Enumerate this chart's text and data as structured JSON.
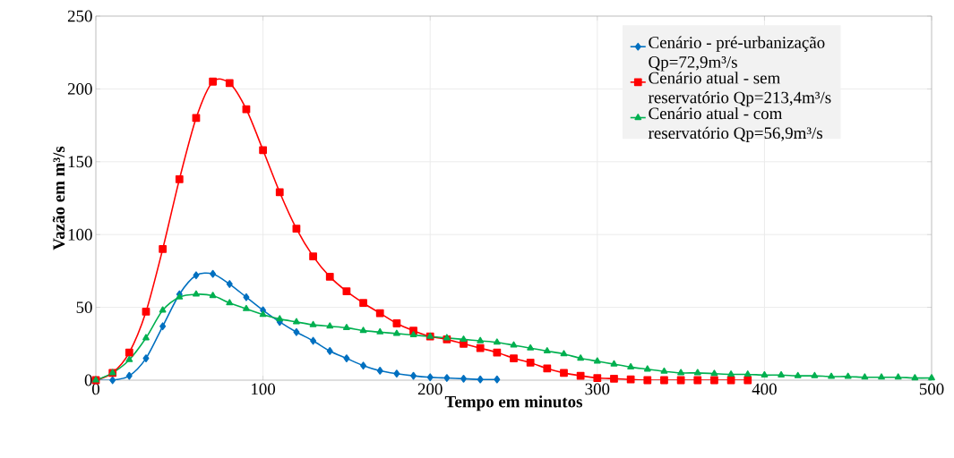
{
  "chart_data": {
    "type": "line",
    "xlabel": "Tempo em minutos",
    "ylabel": "Vazão em m³/s",
    "xlim": [
      0,
      500
    ],
    "xticks": [
      0,
      100,
      200,
      300,
      400,
      500
    ],
    "ylim": [
      0,
      250
    ],
    "yticks": [
      0,
      50,
      100,
      150,
      200,
      250
    ],
    "grid": true,
    "legend": "top right",
    "line_style": "solid",
    "series": [
      {
        "name": "Cenário - pré-urbanização Qp=72,9m³/s",
        "color": "#0070c0",
        "marker": "diamond",
        "x": [
          0,
          10,
          20,
          30,
          40,
          50,
          60,
          70,
          80,
          90,
          100,
          110,
          120,
          130,
          140,
          150,
          160,
          170,
          180,
          190,
          200,
          210,
          220,
          230,
          240
        ],
        "values": [
          0,
          0,
          3,
          15,
          37,
          59,
          72,
          73,
          66,
          57,
          48,
          40,
          33,
          27,
          20,
          15,
          10,
          6.5,
          4.5,
          3,
          2,
          1.5,
          1,
          0.5,
          0.5
        ]
      },
      {
        "name": "Cenário atual - sem reservatório Qp=213,4m³/s",
        "color": "#ff0000",
        "marker": "square",
        "x": [
          0,
          10,
          20,
          30,
          40,
          50,
          60,
          70,
          80,
          90,
          100,
          110,
          120,
          130,
          140,
          150,
          160,
          170,
          180,
          190,
          200,
          210,
          220,
          230,
          240,
          250,
          260,
          270,
          280,
          290,
          300,
          310,
          320,
          330,
          340,
          350,
          360,
          370,
          380,
          390
        ],
        "values": [
          0,
          5,
          19,
          47,
          90,
          138,
          180,
          205,
          204,
          186,
          158,
          129,
          104,
          85,
          71,
          61,
          53,
          46,
          39,
          34,
          30,
          28,
          25,
          22,
          19,
          15,
          12,
          8,
          5,
          3,
          1.5,
          1,
          0.5,
          0,
          0,
          0,
          0,
          0,
          0,
          0
        ]
      },
      {
        "name": "Cenário atual - com reservatório Qp=56,9m³/s",
        "color": "#00b050",
        "marker": "triangle",
        "x": [
          0,
          10,
          20,
          30,
          40,
          50,
          60,
          70,
          80,
          90,
          100,
          110,
          120,
          130,
          140,
          150,
          160,
          170,
          180,
          190,
          200,
          210,
          220,
          230,
          240,
          250,
          260,
          270,
          280,
          290,
          300,
          310,
          320,
          330,
          340,
          350,
          360,
          370,
          380,
          390,
          400,
          410,
          420,
          430,
          440,
          450,
          460,
          470,
          480,
          490,
          500
        ],
        "values": [
          0,
          5,
          14,
          29,
          48,
          57,
          59,
          58,
          53,
          49,
          45,
          42,
          40,
          38,
          37,
          36,
          34,
          33,
          32,
          31,
          30,
          29,
          28,
          27,
          26,
          24,
          22,
          20,
          18,
          15,
          13,
          11,
          9,
          7.5,
          6,
          5,
          5,
          4.5,
          4,
          4,
          3.5,
          3.5,
          3,
          3,
          2.5,
          2.5,
          2,
          2,
          2,
          1.5,
          1.5
        ]
      }
    ]
  }
}
